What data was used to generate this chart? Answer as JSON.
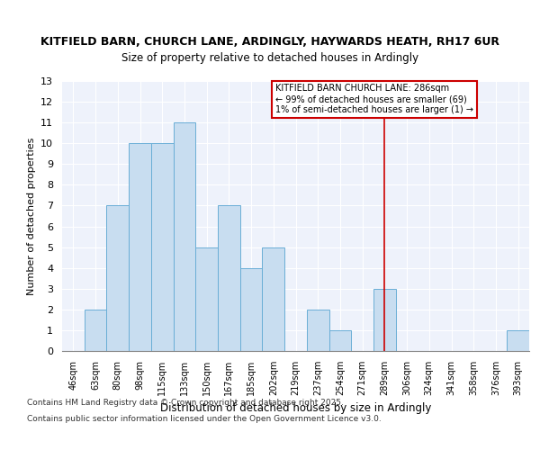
{
  "title1": "KITFIELD BARN, CHURCH LANE, ARDINGLY, HAYWARDS HEATH, RH17 6UR",
  "title2": "Size of property relative to detached houses in Ardingly",
  "xlabel": "Distribution of detached houses by size in Ardingly",
  "ylabel": "Number of detached properties",
  "categories": [
    "46sqm",
    "63sqm",
    "80sqm",
    "98sqm",
    "115sqm",
    "133sqm",
    "150sqm",
    "167sqm",
    "185sqm",
    "202sqm",
    "219sqm",
    "237sqm",
    "254sqm",
    "271sqm",
    "289sqm",
    "306sqm",
    "324sqm",
    "341sqm",
    "358sqm",
    "376sqm",
    "393sqm"
  ],
  "values": [
    0,
    2,
    7,
    10,
    10,
    11,
    5,
    7,
    4,
    5,
    0,
    2,
    1,
    0,
    3,
    0,
    0,
    0,
    0,
    0,
    1
  ],
  "bar_color": "#c8ddf0",
  "bar_edge_color": "#6aaed6",
  "red_line_index": 14,
  "red_line_color": "#cc0000",
  "annotation_text_line1": "KITFIELD BARN CHURCH LANE: 286sqm",
  "annotation_text_line2": "← 99% of detached houses are smaller (69)",
  "annotation_text_line3": "1% of semi-detached houses are larger (1) →",
  "annotation_box_color": "#ffffff",
  "annotation_box_edge_color": "#cc0000",
  "ylim": [
    0,
    13
  ],
  "yticks": [
    0,
    1,
    2,
    3,
    4,
    5,
    6,
    7,
    8,
    9,
    10,
    11,
    12,
    13
  ],
  "footer1": "Contains HM Land Registry data © Crown copyright and database right 2025.",
  "footer2": "Contains public sector information licensed under the Open Government Licence v3.0.",
  "plot_bg_color": "#eef2fb",
  "fig_bg_color": "#ffffff",
  "grid_color": "#ffffff"
}
